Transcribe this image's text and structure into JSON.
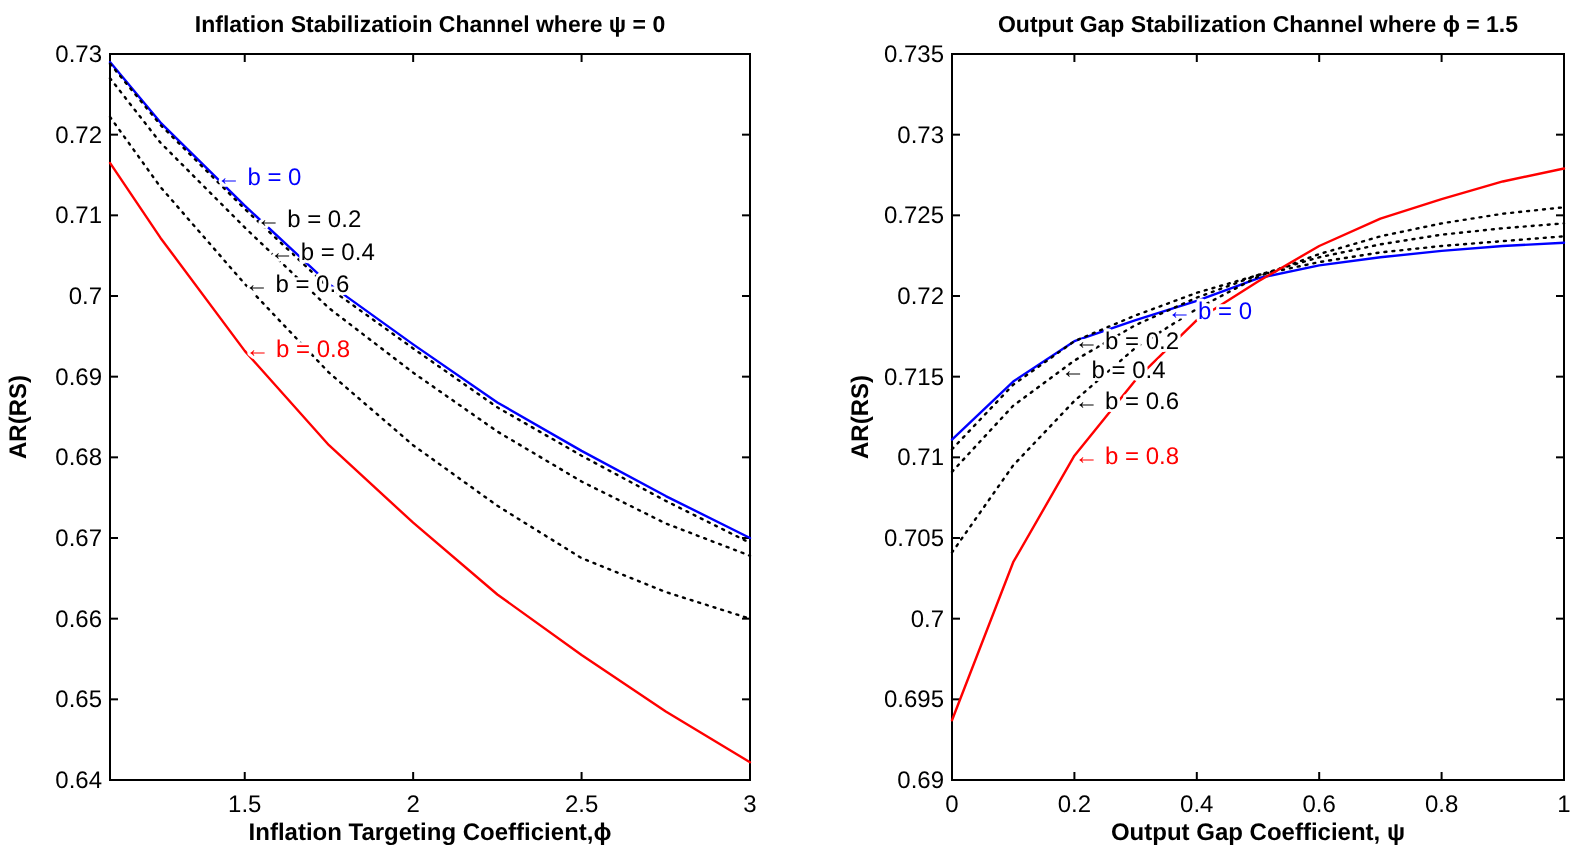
{
  "chart_data": [
    {
      "type": "line",
      "title": "Inflation Stabilizatioin Channel where ψ = 0",
      "xlabel": "Inflation Targeting Coefficient,ϕ",
      "ylabel": "AR(RS)",
      "x": [
        1.1,
        1.25,
        1.5,
        1.75,
        2,
        2.25,
        2.5,
        2.75,
        3
      ],
      "series": [
        {
          "color": "#0000ff",
          "line_style": "solid",
          "values": [
            0.729,
            0.7215,
            0.7112,
            0.7015,
            0.694,
            0.6868,
            0.6808,
            0.6752,
            0.67
          ]
        },
        {
          "color": "#000000",
          "line_style": "dotted",
          "values": [
            0.7288,
            0.7212,
            0.7108,
            0.701,
            0.6935,
            0.6862,
            0.6802,
            0.6746,
            0.6694
          ]
        },
        {
          "color": "#000000",
          "line_style": "dotted",
          "values": [
            0.727,
            0.719,
            0.7085,
            0.6985,
            0.6905,
            0.6832,
            0.677,
            0.6718,
            0.6678
          ]
        },
        {
          "color": "#000000",
          "line_style": "dotted",
          "values": [
            0.7222,
            0.7135,
            0.7015,
            0.6905,
            0.6815,
            0.674,
            0.6675,
            0.6633,
            0.66
          ]
        },
        {
          "color": "#ff0000",
          "line_style": "solid",
          "values": [
            0.7165,
            0.7072,
            0.6932,
            0.6815,
            0.6719,
            0.663,
            0.6555,
            0.6485,
            0.6422
          ]
        }
      ],
      "annotations": [
        {
          "text": "← b = 0",
          "x": 1.417,
          "y": 0.7147
        },
        {
          "text": "← b = 0.2",
          "x": 1.535,
          "y": 0.7095
        },
        {
          "text": "← b = 0.4",
          "x": 1.575,
          "y": 0.7055
        },
        {
          "text": "← b = 0.6",
          "x": 1.5,
          "y": 0.7015
        },
        {
          "text": "← b = 0.8",
          "x": 1.502,
          "y": 0.6934
        }
      ],
      "xlim": [
        1.1,
        3
      ],
      "xticks": [
        1.5,
        2,
        2.5,
        3
      ],
      "ylim": [
        0.64,
        0.73
      ],
      "yticks": [
        0.64,
        0.65,
        0.66,
        0.67,
        0.68,
        0.69,
        0.7,
        0.71,
        0.72,
        0.73
      ],
      "grid": false
    },
    {
      "type": "line",
      "title": "Output Gap Stabilization Channel where ϕ = 1.5",
      "xlabel": "Output Gap Coefficient, ψ",
      "ylabel": "AR(RS)",
      "x": [
        0,
        0.1,
        0.2,
        0.3,
        0.4,
        0.5,
        0.6,
        0.7,
        0.8,
        0.9,
        1
      ],
      "series": [
        {
          "color": "#0000ff",
          "line_style": "solid",
          "values": [
            0.7111,
            0.7147,
            0.7172,
            0.7185,
            0.7197,
            0.7211,
            0.7219,
            0.7224,
            0.7228,
            0.7231,
            0.7233
          ]
        },
        {
          "color": "#000000",
          "line_style": "dotted",
          "values": [
            0.7105,
            0.7145,
            0.7172,
            0.7188,
            0.7202,
            0.7213,
            0.7221,
            0.7227,
            0.7231,
            0.7234,
            0.7237
          ]
        },
        {
          "color": "#000000",
          "line_style": "dotted",
          "values": [
            0.7091,
            0.7132,
            0.716,
            0.7182,
            0.7199,
            0.7213,
            0.7224,
            0.7232,
            0.7238,
            0.7242,
            0.7245
          ]
        },
        {
          "color": "#000000",
          "line_style": "dotted",
          "values": [
            0.7041,
            0.7095,
            0.7135,
            0.7168,
            0.7192,
            0.7212,
            0.7226,
            0.7237,
            0.7245,
            0.7251,
            0.7255
          ]
        },
        {
          "color": "#ff0000",
          "line_style": "solid",
          "values": [
            0.6937,
            0.7035,
            0.7101,
            0.7148,
            0.7185,
            0.7209,
            0.7231,
            0.7248,
            0.726,
            0.7271,
            0.7279
          ]
        }
      ],
      "annotations": [
        {
          "text": "← b = 0",
          "x": 0.352,
          "y": 0.7191
        },
        {
          "text": "← b = 0.2",
          "x": 0.2,
          "y": 0.7172
        },
        {
          "text": "← b = 0.4",
          "x": 0.178,
          "y": 0.7154
        },
        {
          "text": "← b = 0.6",
          "x": 0.2,
          "y": 0.7135
        },
        {
          "text": "← b = 0.8",
          "x": 0.2,
          "y": 0.7101
        }
      ],
      "xlim": [
        0,
        1
      ],
      "xticks": [
        0,
        0.2,
        0.4,
        0.6,
        0.8,
        1
      ],
      "ylim": [
        0.69,
        0.735
      ],
      "yticks": [
        0.69,
        0.695,
        0.7,
        0.705,
        0.71,
        0.715,
        0.72,
        0.725,
        0.73,
        0.735
      ],
      "grid": false
    }
  ]
}
